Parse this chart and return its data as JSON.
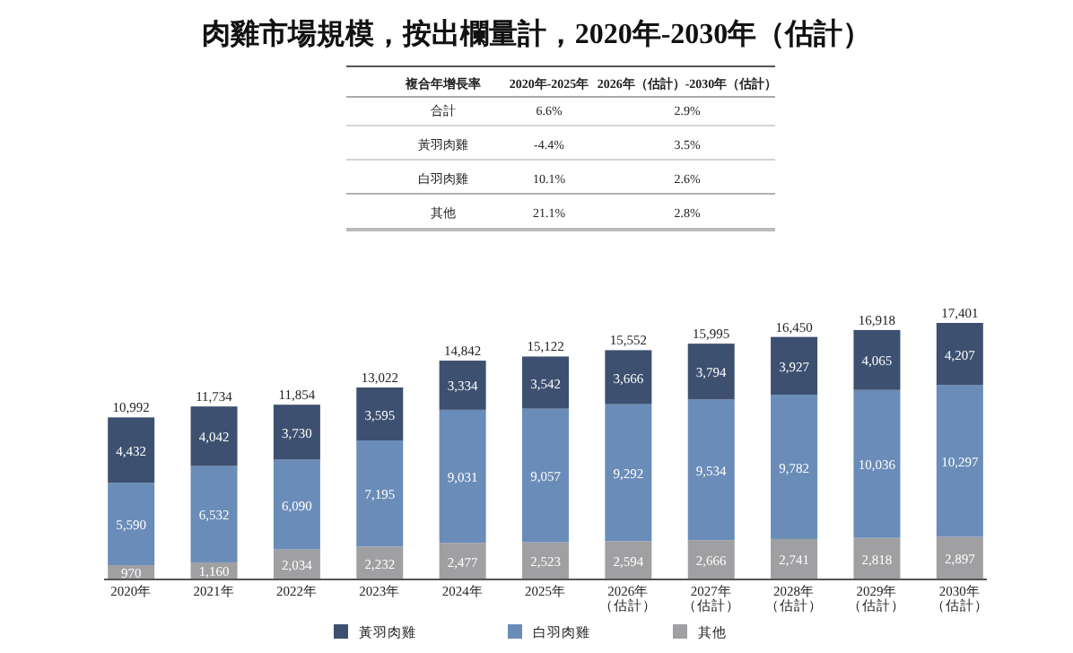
{
  "chart_data": {
    "type": "bar",
    "title": "肉雞市場規模，按出欄量計，2020年-2030年（估計）",
    "categories": [
      "2020年",
      "2021年",
      "2022年",
      "2023年",
      "2024年",
      "2025年",
      "2026年（估計）",
      "2027年（估計）",
      "2028年（估計）",
      "2029年（估計）",
      "2030年（估計）"
    ],
    "stacked": true,
    "legend": "bottom",
    "series": [
      {
        "name": "其他",
        "color": "#a0a0a3",
        "values": [
          970,
          1160,
          2034,
          2232,
          2477,
          2523,
          2594,
          2666,
          2741,
          2818,
          2897
        ],
        "value_labels": [
          "970",
          "1,160",
          "2,034",
          "2,232",
          "2,477",
          "2,523",
          "2,594",
          "2,666",
          "2,741",
          "2,818",
          "2,897"
        ]
      },
      {
        "name": "白羽肉雞",
        "color": "#6a8cb8",
        "values": [
          5590,
          6532,
          6090,
          7195,
          9031,
          9057,
          9292,
          9534,
          9782,
          10036,
          10297
        ],
        "value_labels": [
          "5,590",
          "6,532",
          "6,090",
          "7,195",
          "9,031",
          "9,057",
          "9,292",
          "9,534",
          "9,782",
          "10,036",
          "10,297"
        ]
      },
      {
        "name": "黃羽肉雞",
        "color": "#3d5070",
        "values": [
          4432,
          4042,
          3730,
          3595,
          3334,
          3542,
          3666,
          3794,
          3927,
          4065,
          4207
        ],
        "value_labels": [
          "4,432",
          "4,042",
          "3,730",
          "3,595",
          "3,334",
          "3,542",
          "3,666",
          "3,794",
          "3,927",
          "4,065",
          "4,207"
        ]
      }
    ],
    "totals": [
      "10,992",
      "11,734",
      "11,854",
      "13,022",
      "14,842",
      "15,122",
      "15,552",
      "15,995",
      "16,450",
      "16,918",
      "17,401"
    ],
    "annotations": [
      "複合年增長率",
      "2020年-2025年",
      "2026年（估計）-2030年（估計）",
      "合計",
      "6.6%",
      "2.9%",
      "黃羽肉雞",
      "-4.4%",
      "3.5%",
      "白羽肉雞",
      "10.1%",
      "2.6%",
      "其他",
      "21.1%",
      "2.8%"
    ]
  }
}
